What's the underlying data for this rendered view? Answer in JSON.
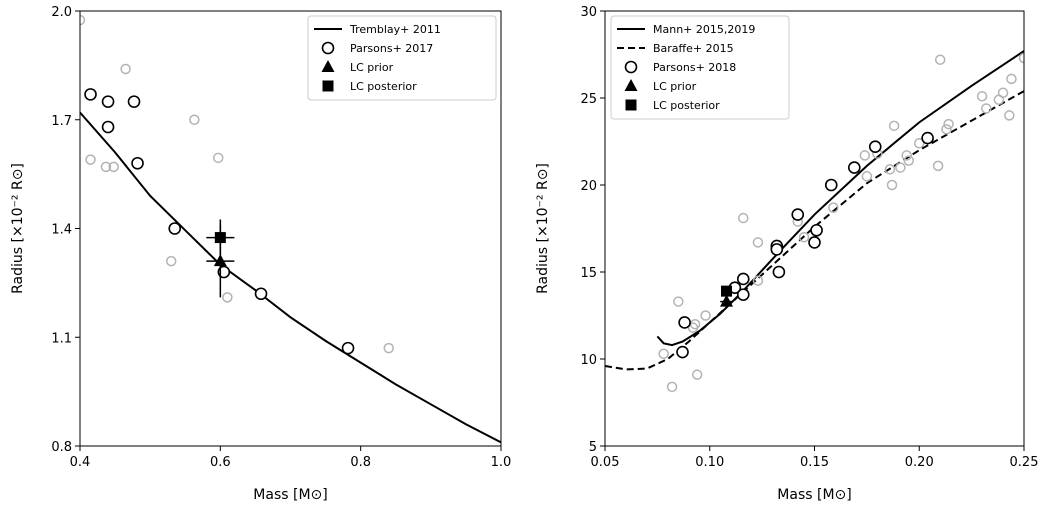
{
  "chart_data": [
    {
      "type": "scatter",
      "title": "",
      "xlabel": "Mass [M⊙]",
      "ylabel": "Radius [×10⁻² R⊙]",
      "xlim": [
        0.4,
        1.0
      ],
      "ylim": [
        0.8,
        2.0
      ],
      "xticks": [
        "0.4",
        "0.6",
        "0.8",
        "1.0"
      ],
      "yticks": [
        "0.8",
        "1.1",
        "1.4",
        "1.7",
        "2.0"
      ],
      "grid": false,
      "legend_position": "top-right",
      "legend": [
        "Tremblay+ 2011",
        "Parsons+ 2017",
        "LC prior",
        "LC posterior"
      ],
      "series": [
        {
          "name": "Tremblay+ 2011",
          "kind": "line-solid",
          "points": [
            [
              0.4,
              1.72
            ],
            [
              0.45,
              1.61
            ],
            [
              0.5,
              1.49
            ],
            [
              0.55,
              1.395
            ],
            [
              0.6,
              1.3
            ],
            [
              0.65,
              1.23
            ],
            [
              0.7,
              1.155
            ],
            [
              0.75,
              1.09
            ],
            [
              0.8,
              1.03
            ],
            [
              0.85,
              0.97
            ],
            [
              0.9,
              0.915
            ],
            [
              0.95,
              0.86
            ],
            [
              1.0,
              0.81
            ]
          ]
        },
        {
          "name": "Parsons+ 2017",
          "kind": "open-circle-black",
          "points": [
            [
              0.415,
              1.77
            ],
            [
              0.44,
              1.75
            ],
            [
              0.44,
              1.68
            ],
            [
              0.477,
              1.75
            ],
            [
              0.482,
              1.58
            ],
            [
              0.535,
              1.4
            ],
            [
              0.605,
              1.28
            ],
            [
              0.658,
              1.22
            ],
            [
              0.782,
              1.07
            ]
          ]
        },
        {
          "kind": "open-circle-grey",
          "points": [
            [
              0.4,
              1.975
            ],
            [
              0.415,
              1.59
            ],
            [
              0.437,
              1.57
            ],
            [
              0.448,
              1.57
            ],
            [
              0.465,
              1.84
            ],
            [
              0.53,
              1.31
            ],
            [
              0.563,
              1.7
            ],
            [
              0.597,
              1.595
            ],
            [
              0.61,
              1.21
            ],
            [
              0.84,
              1.07
            ]
          ]
        },
        {
          "name": "LC prior",
          "kind": "triangle",
          "points": [
            [
              0.6,
              1.31
            ]
          ],
          "xerr": [
            0.02
          ],
          "yerr": [
            0.1
          ]
        },
        {
          "name": "LC posterior",
          "kind": "square",
          "points": [
            [
              0.6,
              1.375
            ]
          ],
          "xerr": [
            0.02
          ],
          "yerr": [
            0.05
          ]
        }
      ]
    },
    {
      "type": "scatter",
      "title": "",
      "xlabel": "Mass [M⊙]",
      "ylabel": "Radius [×10⁻² R⊙]",
      "xlim": [
        0.05,
        0.25
      ],
      "ylim": [
        5,
        30
      ],
      "xticks": [
        "0.05",
        "0.10",
        "0.15",
        "0.20",
        "0.25"
      ],
      "yticks": [
        "5",
        "10",
        "15",
        "20",
        "25",
        "30"
      ],
      "grid": false,
      "legend_position": "top-left",
      "legend": [
        "Mann+ 2015,2019",
        "Baraffe+ 2015",
        "Parsons+ 2018",
        "LC prior",
        "LC posterior"
      ],
      "series": [
        {
          "name": "Mann+ 2015,2019",
          "kind": "line-solid",
          "points": [
            [
              0.075,
              11.3
            ],
            [
              0.078,
              10.9
            ],
            [
              0.082,
              10.8
            ],
            [
              0.087,
              11.0
            ],
            [
              0.095,
              11.6
            ],
            [
              0.105,
              12.6
            ],
            [
              0.115,
              13.8
            ],
            [
              0.125,
              15.1
            ],
            [
              0.135,
              16.4
            ],
            [
              0.15,
              18.3
            ],
            [
              0.175,
              21.1
            ],
            [
              0.2,
              23.6
            ],
            [
              0.225,
              25.7
            ],
            [
              0.25,
              27.7
            ]
          ]
        },
        {
          "name": "Baraffe+ 2015",
          "kind": "line-dashed",
          "points": [
            [
              0.05,
              9.6
            ],
            [
              0.06,
              9.4
            ],
            [
              0.07,
              9.45
            ],
            [
              0.08,
              10.0
            ],
            [
              0.09,
              11.0
            ],
            [
              0.1,
              12.1
            ],
            [
              0.11,
              13.2
            ],
            [
              0.12,
              14.3
            ],
            [
              0.13,
              15.4
            ],
            [
              0.14,
              16.5
            ],
            [
              0.15,
              17.6
            ],
            [
              0.175,
              20.1
            ],
            [
              0.2,
              22.0
            ],
            [
              0.225,
              23.7
            ],
            [
              0.25,
              25.4
            ]
          ]
        },
        {
          "name": "Parsons+ 2018",
          "kind": "open-circle-black",
          "points": [
            [
              0.088,
              12.1
            ],
            [
              0.087,
              10.4
            ],
            [
              0.112,
              14.1
            ],
            [
              0.116,
              14.6
            ],
            [
              0.116,
              13.7
            ],
            [
              0.132,
              16.5
            ],
            [
              0.132,
              16.3
            ],
            [
              0.133,
              15.0
            ],
            [
              0.142,
              18.3
            ],
            [
              0.15,
              16.7
            ],
            [
              0.151,
              17.4
            ],
            [
              0.158,
              20.0
            ],
            [
              0.169,
              21.0
            ],
            [
              0.179,
              22.2
            ],
            [
              0.204,
              22.7
            ]
          ]
        },
        {
          "kind": "open-circle-grey",
          "points": [
            [
              0.078,
              10.3
            ],
            [
              0.082,
              8.4
            ],
            [
              0.085,
              13.3
            ],
            [
              0.092,
              11.8
            ],
            [
              0.093,
              12.0
            ],
            [
              0.094,
              9.1
            ],
            [
              0.098,
              12.5
            ],
            [
              0.116,
              18.1
            ],
            [
              0.123,
              16.7
            ],
            [
              0.123,
              14.5
            ],
            [
              0.142,
              17.9
            ],
            [
              0.145,
              17.0
            ],
            [
              0.159,
              18.7
            ],
            [
              0.174,
              21.7
            ],
            [
              0.175,
              20.5
            ],
            [
              0.18,
              21.8
            ],
            [
              0.186,
              20.9
            ],
            [
              0.187,
              20.0
            ],
            [
              0.188,
              23.4
            ],
            [
              0.191,
              21.0
            ],
            [
              0.194,
              21.7
            ],
            [
              0.195,
              21.4
            ],
            [
              0.2,
              22.4
            ],
            [
              0.209,
              21.1
            ],
            [
              0.21,
              27.2
            ],
            [
              0.213,
              23.2
            ],
            [
              0.214,
              23.5
            ],
            [
              0.23,
              25.1
            ],
            [
              0.232,
              24.4
            ],
            [
              0.238,
              24.9
            ],
            [
              0.24,
              25.3
            ],
            [
              0.243,
              24.0
            ],
            [
              0.244,
              26.1
            ],
            [
              0.25,
              27.3
            ]
          ]
        },
        {
          "name": "LC prior",
          "kind": "triangle",
          "points": [
            [
              0.108,
              13.3
            ]
          ],
          "xerr": [
            0.003
          ],
          "yerr": [
            0.3
          ]
        },
        {
          "name": "LC posterior",
          "kind": "square",
          "points": [
            [
              0.108,
              13.9
            ]
          ],
          "xerr": [
            0.002
          ],
          "yerr": [
            0.2
          ]
        }
      ]
    }
  ]
}
